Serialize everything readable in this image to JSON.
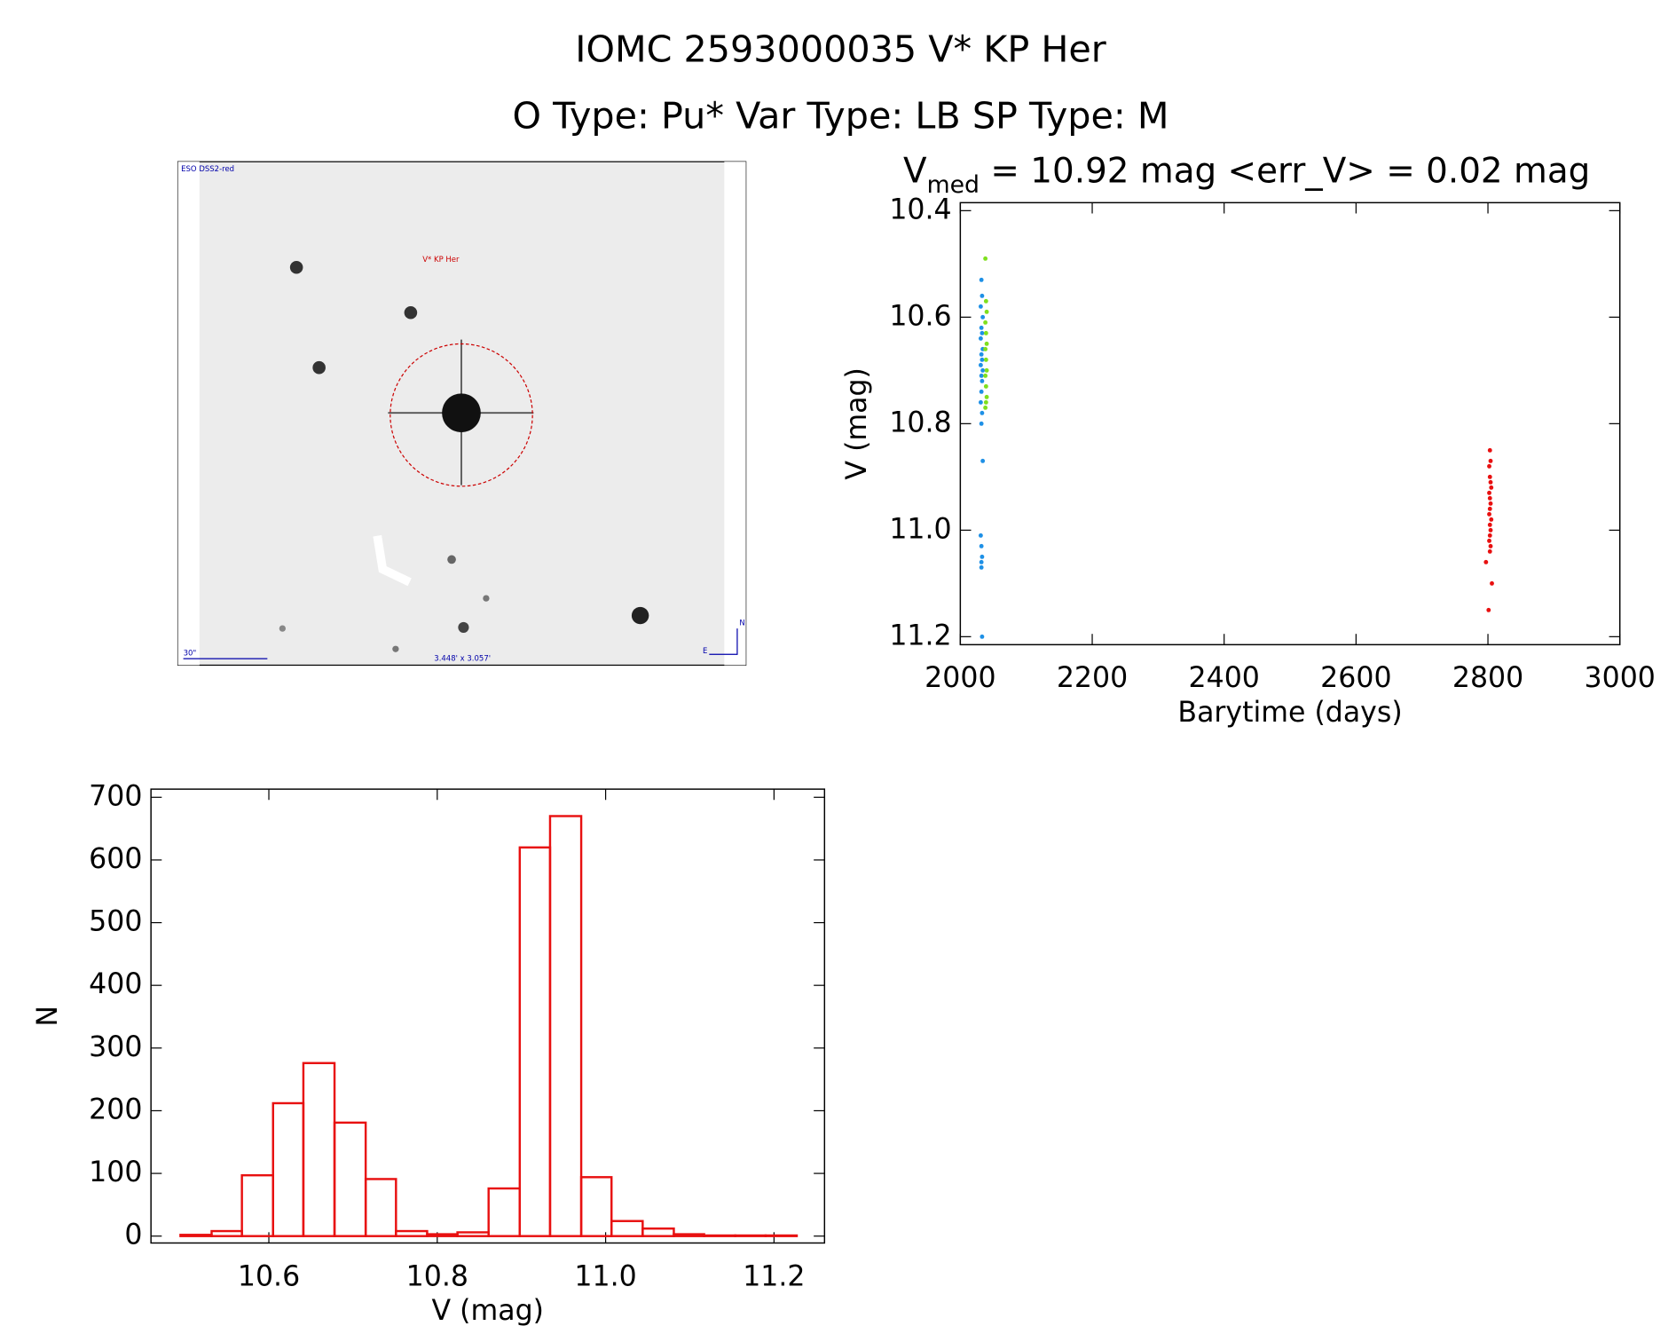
{
  "header": {
    "title": "IOMC 2593000035   V* KP Her",
    "subtitle": "O Type: Pu*  Var Type: LB  SP Type: M"
  },
  "finder": {
    "survey": "ESO DSS2-red",
    "target": "V* KP Her",
    "scale": "30\"",
    "size": "3.448' x 3.057'",
    "north": "N",
    "east": "E"
  },
  "chart_data": [
    {
      "type": "scatter",
      "title": [
        "V",
        "med",
        " = 10.92 mag <err_V> = 0.02 mag"
      ],
      "x_label": "Barytime (days)",
      "y_label": "V (mag)",
      "xlim": [
        2000,
        3000
      ],
      "xticks": [
        2000,
        2200,
        2400,
        2600,
        2800,
        3000
      ],
      "ylim": [
        10.385,
        11.215
      ],
      "inverted_y": true,
      "yticks": [
        10.4,
        10.6,
        10.8,
        {
          "value": 11,
          "label": "11.0"
        },
        11.2
      ],
      "series": [
        {
          "color": "#1e90e6",
          "x": [
            2032,
            2033,
            2031,
            2034,
            2032,
            2033,
            2031,
            2034,
            2032,
            2033,
            2031,
            2034,
            2032,
            2033,
            2032,
            2031,
            2033,
            2032,
            2034,
            2031,
            2032,
            2033,
            2032,
            2032,
            2033
          ],
          "y": [
            10.53,
            10.56,
            10.58,
            10.6,
            10.62,
            10.63,
            10.64,
            10.66,
            10.67,
            10.68,
            10.69,
            10.7,
            10.71,
            10.72,
            10.74,
            10.76,
            10.78,
            10.8,
            10.87,
            11.01,
            11.03,
            11.05,
            11.06,
            11.07,
            11.2
          ]
        },
        {
          "color": "#7fe01e",
          "x": [
            2038,
            2039,
            2040,
            2038,
            2039,
            2040,
            2038,
            2039,
            2040,
            2038,
            2039,
            2040,
            2039,
            2038
          ],
          "y": [
            10.49,
            10.57,
            10.59,
            10.61,
            10.63,
            10.65,
            10.66,
            10.68,
            10.7,
            10.71,
            10.73,
            10.75,
            10.76,
            10.77
          ]
        },
        {
          "color": "#e81010",
          "x": [
            2803,
            2804,
            2802,
            2803,
            2804,
            2805,
            2802,
            2803,
            2804,
            2803,
            2802,
            2805,
            2803,
            2804,
            2803,
            2802,
            2804,
            2803,
            2797,
            2806,
            2801
          ],
          "y": [
            10.85,
            10.87,
            10.88,
            10.9,
            10.91,
            10.92,
            10.93,
            10.94,
            10.95,
            10.96,
            10.97,
            10.98,
            10.99,
            11.0,
            11.01,
            11.02,
            11.03,
            11.04,
            11.06,
            11.1,
            11.15
          ]
        }
      ]
    },
    {
      "type": "histogram",
      "x_label": "V (mag)",
      "y_label": "N",
      "color": "#e81010",
      "xlim": [
        10.46,
        11.26
      ],
      "xticks": [
        10.6,
        10.8,
        {
          "value": 11,
          "label": "11.0"
        },
        11.2
      ],
      "ylim": [
        -11,
        713
      ],
      "yticks": [
        0,
        100,
        200,
        300,
        400,
        500,
        600,
        700
      ],
      "bins": [
        10.495,
        10.532,
        10.568,
        10.605,
        10.641,
        10.678,
        10.715,
        10.751,
        10.788,
        10.824,
        10.861,
        10.898,
        10.934,
        10.971,
        11.007,
        11.044,
        11.081,
        11.117,
        11.154,
        11.19,
        11.227
      ],
      "values": [
        2,
        8,
        97,
        212,
        276,
        181,
        91,
        8,
        3,
        6,
        76,
        620,
        670,
        94,
        24,
        12,
        3,
        1,
        1,
        1
      ]
    }
  ]
}
